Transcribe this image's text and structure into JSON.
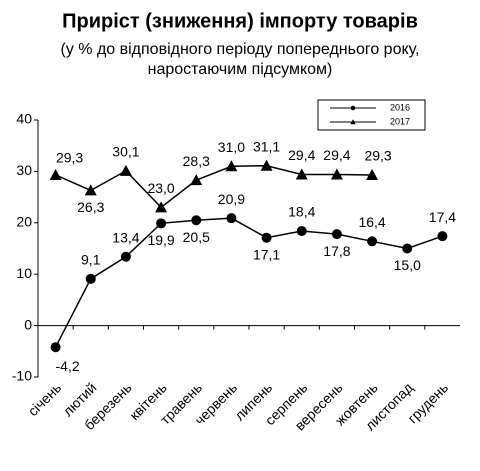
{
  "chart_data": {
    "type": "line",
    "title": "Приріст (зниження) імпорту товарів",
    "subtitle": [
      "(у % до відповідного періоду попереднього року,",
      "наростаючим підсумком)"
    ],
    "categories": [
      "січень",
      "лютий",
      "березень",
      "квітень",
      "травень",
      "червень",
      "липень",
      "серпень",
      "вересень",
      "жовтень",
      "листопад",
      "грудень"
    ],
    "series": [
      {
        "name": "2016",
        "color": "#000000",
        "marker": "circle",
        "values": [
          -4.2,
          9.1,
          13.4,
          19.9,
          20.5,
          20.9,
          17.1,
          18.4,
          17.8,
          16.4,
          15.0,
          17.4
        ],
        "value_labels": [
          "-4,2",
          "9,1",
          "13,4",
          "19,9",
          "20,5",
          "20,9",
          "17,1",
          "18,4",
          "17,8",
          "16,4",
          "15,0",
          "17,4"
        ]
      },
      {
        "name": "2017",
        "color": "#000000",
        "marker": "triangle",
        "values": [
          29.3,
          26.3,
          30.1,
          23.0,
          28.3,
          31.0,
          31.1,
          29.4,
          29.4,
          29.3,
          null,
          null
        ],
        "value_labels": [
          "29,3",
          "26,3",
          "30,1",
          "23,0",
          "28,3",
          "31,0",
          "31,1",
          "29,4",
          "29,4",
          "29,3",
          null,
          null
        ]
      }
    ],
    "ylim": [
      -10,
      40
    ],
    "yticks": [
      -10,
      0,
      10,
      20,
      30,
      40
    ],
    "grid": false,
    "legend": "top-right"
  }
}
